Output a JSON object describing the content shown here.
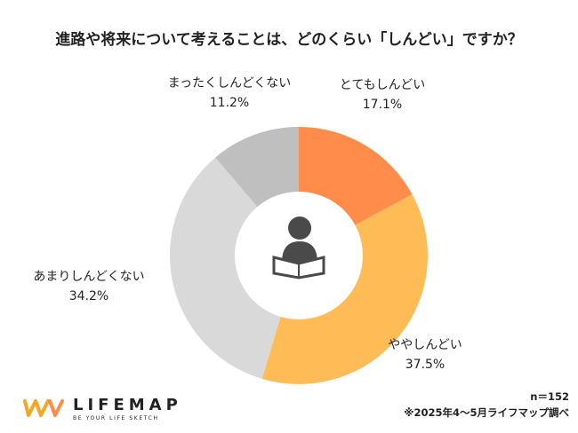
{
  "chart_data": {
    "type": "donut",
    "title": "進路や将来について考えることは、どのくらい「しんどい」ですか？",
    "categories": [
      "とてもしんどい",
      "ややしんどい",
      "あまりしんどくない",
      "まったくしんどくない"
    ],
    "values": [
      17.1,
      37.5,
      34.2,
      11.2
    ],
    "value_labels": [
      "17.1%",
      "37.5%",
      "34.2%",
      "11.2%"
    ],
    "colors": [
      "#ff8c4b",
      "#ffbb55",
      "#d9d9d9",
      "#bfbfbf"
    ],
    "notes": [
      "n＝152",
      "※2025年4〜5月ライフマップ調べ"
    ]
  },
  "logo": {
    "name": "LIFEMAP",
    "tagline": "BE YOUR LIFE SKETCH"
  }
}
